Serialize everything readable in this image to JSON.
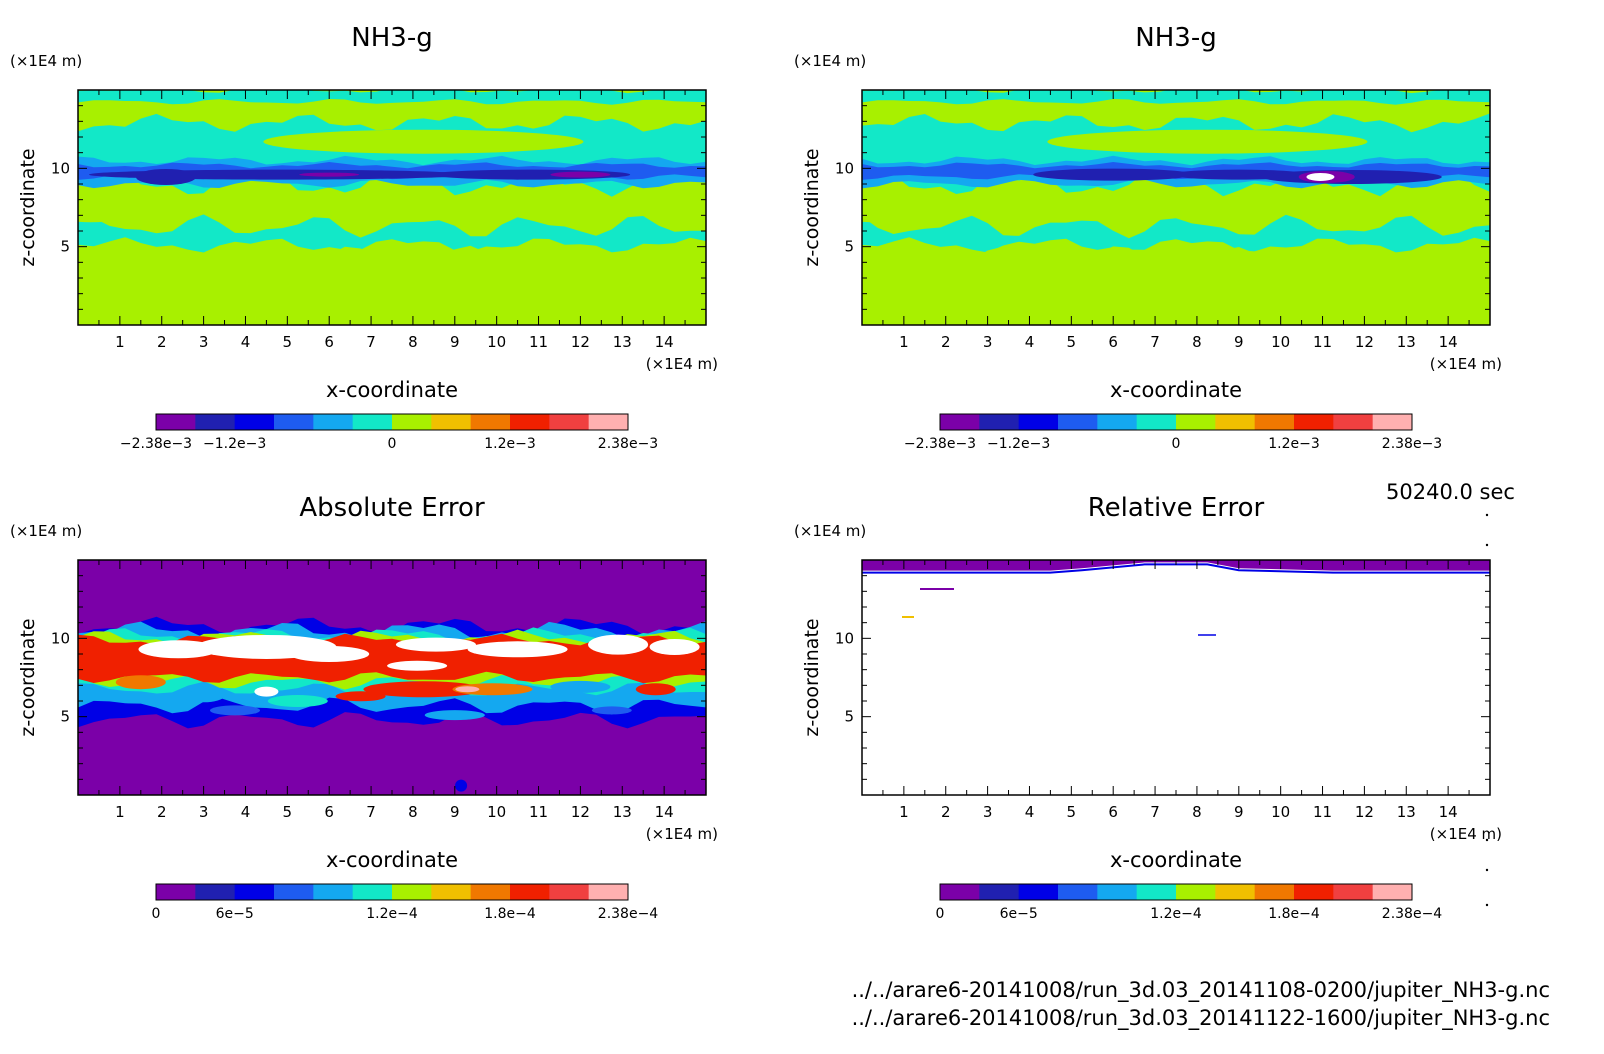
{
  "palette": [
    "#7b00a8",
    "#2020b0",
    "#0000e6",
    "#1e5cf0",
    "#14a8f0",
    "#12e8c8",
    "#a8f000",
    "#f0c000",
    "#f07800",
    "#f02000",
    "#f04040",
    "#ffb0b0"
  ],
  "timestamp": "50240.0 sec",
  "files": [
    "../../arare6-20141008/run_3d.03_20141108-0200/jupiter_NH3-g.nc",
    "../../arare6-20141008/run_3d.03_20141122-1600/jupiter_NH3-g.nc"
  ],
  "chart_data": [
    {
      "type": "heatmap",
      "title": "NH3-g",
      "xlabel": "x-coordinate",
      "ylabel": "z-coordinate",
      "xunit": "(×1E4 m)",
      "yunit": "(×1E4 m)",
      "xlim": [
        0,
        15
      ],
      "ylim": [
        0,
        15
      ],
      "xticks": [
        "1",
        "2",
        "3",
        "4",
        "5",
        "6",
        "7",
        "8",
        "9",
        "10",
        "11",
        "12",
        "13",
        "14"
      ],
      "yticks": [
        "5",
        "10"
      ],
      "colorbar": {
        "range": [
          -0.00238,
          0.00238
        ],
        "labels": [
          "-2.38e-3",
          "-1.2e-3",
          "0",
          "1.2e-3",
          "2.38e-3"
        ]
      }
    },
    {
      "type": "heatmap",
      "title": "NH3-g",
      "xlabel": "x-coordinate",
      "ylabel": "z-coordinate",
      "xunit": "(×1E4 m)",
      "yunit": "(×1E4 m)",
      "xlim": [
        0,
        15
      ],
      "ylim": [
        0,
        15
      ],
      "xticks": [
        "1",
        "2",
        "3",
        "4",
        "5",
        "6",
        "7",
        "8",
        "9",
        "10",
        "11",
        "12",
        "13",
        "14"
      ],
      "yticks": [
        "5",
        "10"
      ],
      "colorbar": {
        "range": [
          -0.00238,
          0.00238
        ],
        "labels": [
          "-2.38e-3",
          "-1.2e-3",
          "0",
          "1.2e-3",
          "2.38e-3"
        ]
      }
    },
    {
      "type": "heatmap",
      "title": "Absolute Error",
      "xlabel": "x-coordinate",
      "ylabel": "z-coordinate",
      "xunit": "(×1E4 m)",
      "yunit": "(×1E4 m)",
      "xlim": [
        0,
        15
      ],
      "ylim": [
        0,
        15
      ],
      "xticks": [
        "1",
        "2",
        "3",
        "4",
        "5",
        "6",
        "7",
        "8",
        "9",
        "10",
        "11",
        "12",
        "13",
        "14"
      ],
      "yticks": [
        "5",
        "10"
      ],
      "colorbar": {
        "range": [
          0,
          0.000238
        ],
        "labels": [
          "0",
          "6e-5",
          "1.2e-4",
          "1.8e-4",
          "2.38e-4"
        ]
      }
    },
    {
      "type": "heatmap",
      "title": "Relative Error",
      "xlabel": "x-coordinate",
      "ylabel": "z-coordinate",
      "xunit": "(×1E4 m)",
      "yunit": "(×1E4 m)",
      "xlim": [
        0,
        15
      ],
      "ylim": [
        0,
        15
      ],
      "xticks": [
        "1",
        "2",
        "3",
        "4",
        "5",
        "6",
        "7",
        "8",
        "9",
        "10",
        "11",
        "12",
        "13",
        "14"
      ],
      "yticks": [
        "5",
        "10"
      ],
      "colorbar": {
        "range": [
          0,
          0.000238
        ],
        "labels": [
          "0",
          "6e-5",
          "1.2e-4",
          "1.8e-4",
          "2.38e-4"
        ]
      }
    }
  ]
}
